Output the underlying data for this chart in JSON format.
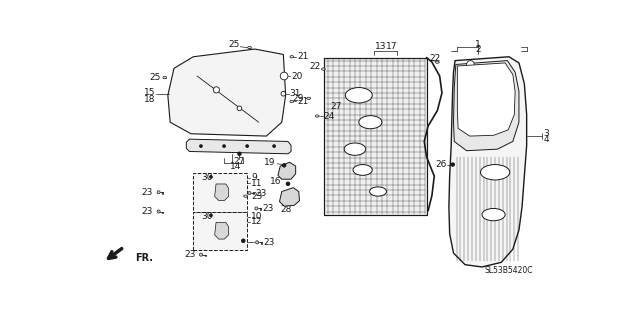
{
  "part_code": "SL53B5420C",
  "bg_color": "#ffffff",
  "line_color": "#1a1a1a",
  "labels": {
    "glass_top": "25",
    "glass_left": "25",
    "glass_15": "15",
    "glass_18": "18",
    "glass_21a": "21",
    "glass_20": "20",
    "glass_31": "31",
    "glass_21b": "21",
    "strip_27": "27",
    "strip_14": "14",
    "frame_13": "13",
    "frame_17": "17",
    "frame_27": "27",
    "frame_22a": "22",
    "frame_22b": "22",
    "frame_29": "29",
    "frame_24": "24",
    "door_1": "1",
    "door_2": "2",
    "door_3": "3",
    "door_4": "4",
    "door_26": "26",
    "hinge_9": "9",
    "hinge_11": "11",
    "hinge_10": "10",
    "hinge_12": "12",
    "hinge_30a": "30",
    "hinge_30b": "30",
    "hinge_23a": "23",
    "hinge_23b": "23",
    "hinge_23c": "23",
    "hinge_23d": "23",
    "latch_19": "19",
    "latch_16": "16",
    "latch_28": "28",
    "latch_23a": "23",
    "latch_23b": "23",
    "fr": "FR."
  }
}
